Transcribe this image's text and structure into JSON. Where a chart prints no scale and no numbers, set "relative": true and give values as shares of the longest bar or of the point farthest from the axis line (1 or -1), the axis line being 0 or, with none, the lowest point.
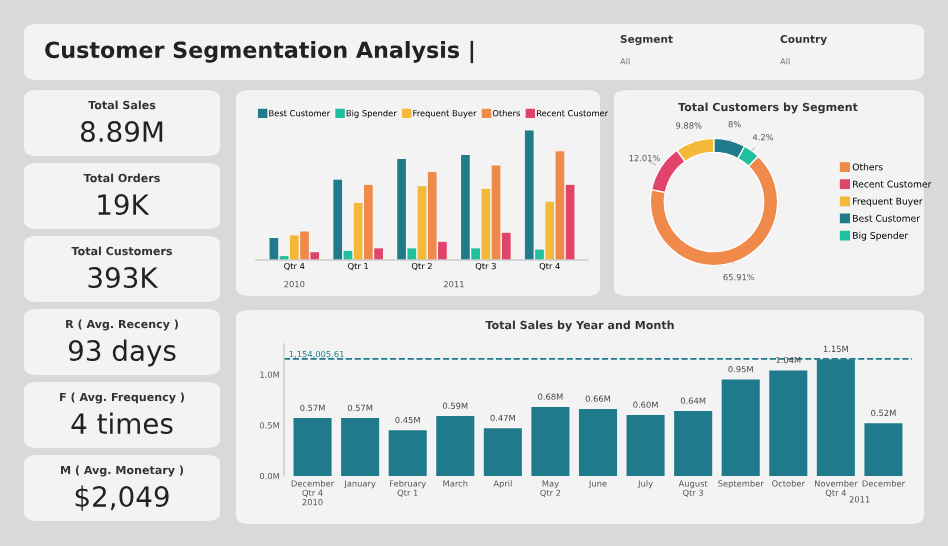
{
  "chart_data": [
    {
      "type": "other",
      "title": "Customer Segmentation Analysis |",
      "annotations": [
        "Segment",
        "All",
        "Country",
        "All",
        "Total Sales",
        "8.89M",
        "Total Orders",
        "19K",
        "Total Customers",
        "393K",
        "R ( Avg. Recency )",
        "93 days",
        "F ( Avg. Frequency )",
        "4 times",
        "M ( Avg. Monetary )",
        "$2,049"
      ]
    },
    {
      "type": "bar",
      "relative": true,
      "legend": "top",
      "categories": [
        "Qtr 4",
        "Qtr 1",
        "Qtr 2",
        "Qtr 3",
        "Qtr 4"
      ],
      "annotations": [
        "2010",
        "2011"
      ],
      "series": [
        {
          "name": "Best Customer",
          "color": "#1f7a8c",
          "values": [
            0.17,
            0.62,
            0.78,
            0.81,
            1
          ]
        },
        {
          "name": "Big Spender",
          "color": "#1fbf9f",
          "values": [
            0.03,
            0.07,
            0.09,
            0.09,
            0.08
          ]
        },
        {
          "name": "Frequent Buyer",
          "color": "#f5b93a",
          "values": [
            0.19,
            0.44,
            0.57,
            0.55,
            0.45
          ]
        },
        {
          "name": "Others",
          "color": "#f08a4b",
          "values": [
            0.22,
            0.58,
            0.68,
            0.73,
            0.84
          ]
        },
        {
          "name": "Recent Customer",
          "color": "#e0446a",
          "values": [
            0.06,
            0.09,
            0.14,
            0.21,
            0.58
          ]
        }
      ]
    },
    {
      "type": "donut",
      "title": "Total Customers by Segment",
      "legend": "right",
      "categories": [
        "Others",
        "Recent Customer",
        "Frequent Buyer",
        "Best Customer",
        "Big Spender"
      ],
      "values": [
        65.91,
        12.01,
        9.88,
        8,
        4.2
      ],
      "value_labels": [
        "65.91%",
        "12.01%",
        "9.88%",
        "8%",
        "4.2%"
      ],
      "colors": [
        "#f08a4b",
        "#e0446a",
        "#f5b93a",
        "#1f7a8c",
        "#1fbf9f"
      ]
    },
    {
      "type": "bar",
      "title": "Total Sales by Year and Month",
      "categories": [
        "December\nQtr 4\n2010",
        "January",
        "February\nQtr 1",
        "March",
        "April",
        "May\nQtr 2",
        "June",
        "July",
        "August\nQtr 3",
        "September",
        "October",
        "November\nQtr 4",
        "December"
      ],
      "annotations": [
        "2011"
      ],
      "values": [
        0.57,
        0.57,
        0.45,
        0.59,
        0.47,
        0.68,
        0.66,
        0.6,
        0.64,
        0.95,
        1.04,
        1.15,
        0.52
      ],
      "value_labels": [
        "0.57M",
        "0.57M",
        "0.45M",
        "0.59M",
        "0.47M",
        "0.68M",
        "0.66M",
        "0.60M",
        "0.64M",
        "0.95M",
        "1.04M",
        "1.15M",
        "0.52M"
      ],
      "color": "#1f7a8c",
      "ylim": [
        0,
        1.3
      ],
      "yticks": [
        {
          "value": 0,
          "label": "0.0M"
        },
        {
          "value": 0.5,
          "label": "0.5M"
        },
        {
          "value": 1,
          "label": "1.0M"
        }
      ],
      "ref_lines": [
        {
          "axis": "y",
          "value": 1.15400561,
          "label": "1,154,005.61",
          "color": "#1f7a8c",
          "line_style": "dashed"
        }
      ]
    }
  ]
}
